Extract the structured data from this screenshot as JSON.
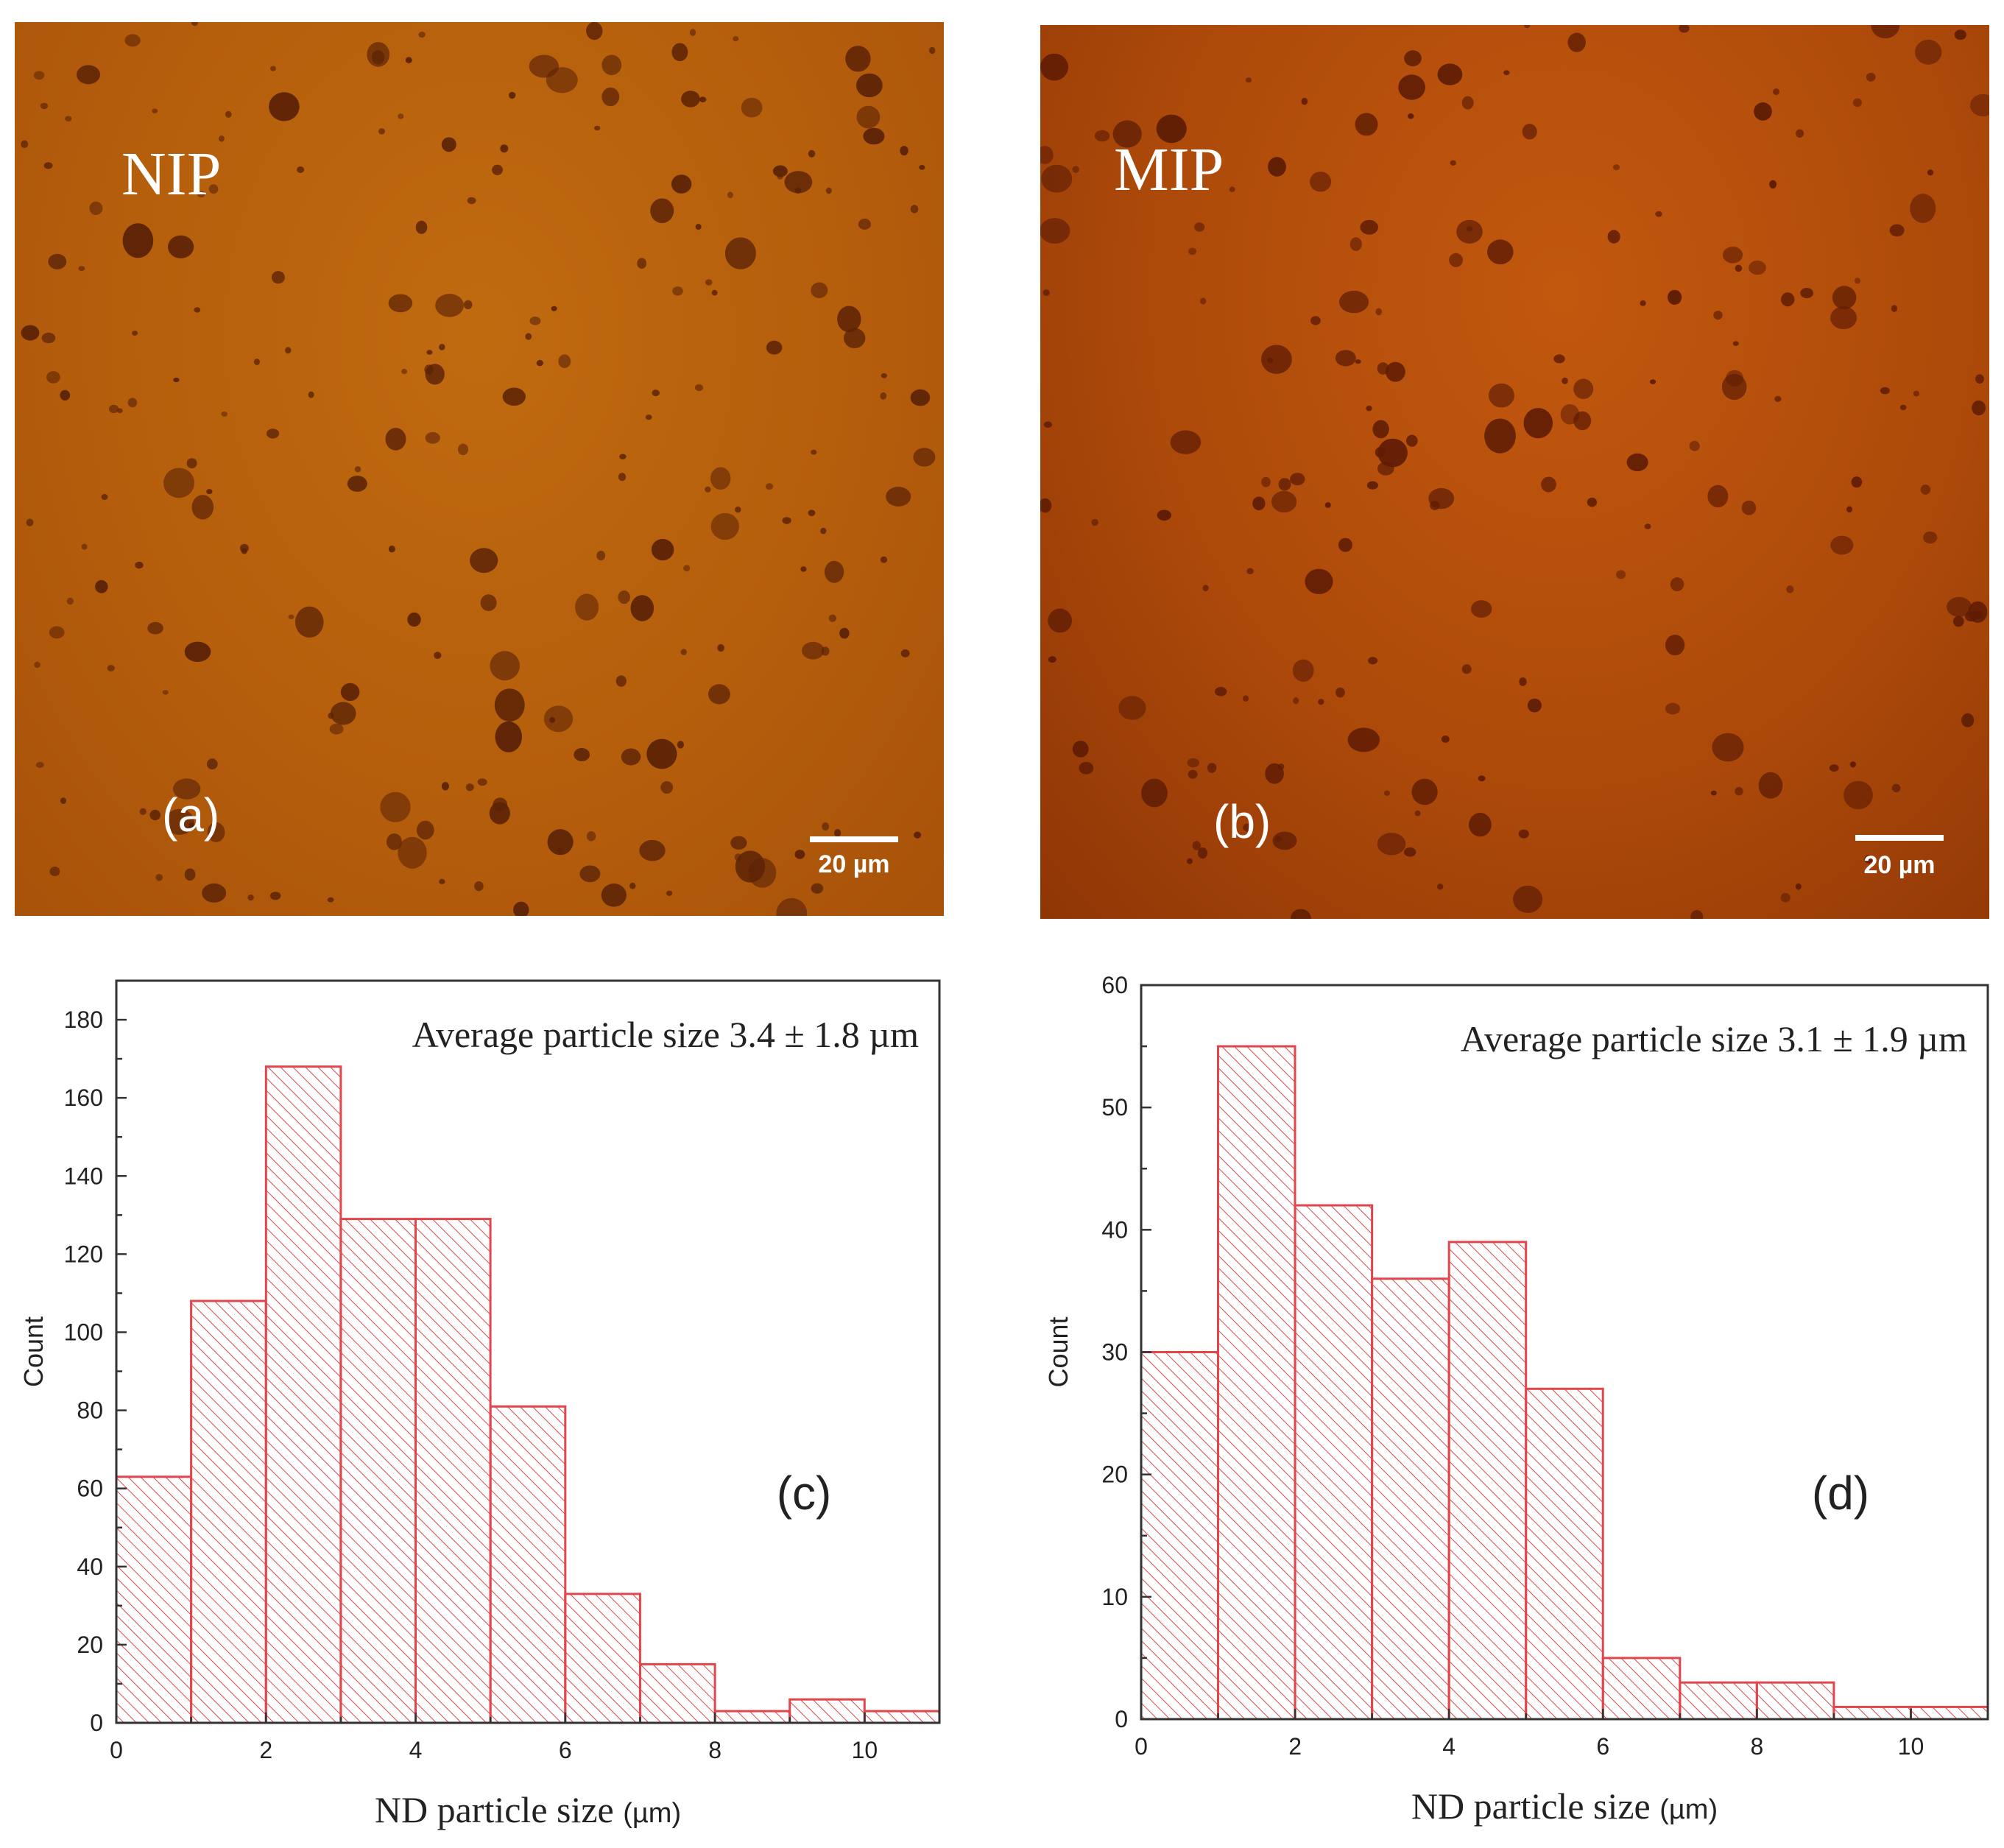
{
  "panels": {
    "a": {
      "sample": "NIP",
      "letter": "(a)",
      "scale_label": "20 µm",
      "color": "#b55e0c"
    },
    "b": {
      "sample": "MIP",
      "letter": "(b)",
      "scale_label": "20 µm",
      "color": "#ad4a0a"
    }
  },
  "bar_color": "#e0464b",
  "chart_data": [
    {
      "type": "bar",
      "panel_letter": "(c)",
      "annotation": "Average particle size 3.4 ± 1.8 µm",
      "xlabel_main": "ND particle size",
      "xlabel_unit": "(µm)",
      "ylabel": "Count",
      "bin_edges": [
        0,
        1,
        2,
        3,
        4,
        5,
        6,
        7,
        8,
        9,
        10,
        11
      ],
      "values": [
        63,
        108,
        168,
        129,
        129,
        81,
        33,
        15,
        3,
        6,
        3
      ],
      "xlim": [
        0,
        11
      ],
      "ylim": [
        0,
        190
      ],
      "xticks": [
        0,
        2,
        4,
        6,
        8,
        10
      ],
      "yticks": [
        0,
        20,
        40,
        60,
        80,
        100,
        120,
        140,
        160,
        180
      ]
    },
    {
      "type": "bar",
      "panel_letter": "(d)",
      "annotation": "Average particle size 3.1 ± 1.9 µm",
      "xlabel_main": "ND particle size",
      "xlabel_unit": "(µm)",
      "ylabel": "Count",
      "bin_edges": [
        0,
        1,
        2,
        3,
        4,
        5,
        6,
        7,
        8,
        9,
        10,
        11
      ],
      "values": [
        30,
        55,
        42,
        36,
        39,
        27,
        5,
        3,
        3,
        1,
        1
      ],
      "xlim": [
        0,
        11
      ],
      "ylim": [
        0,
        60
      ],
      "xticks": [
        0,
        2,
        4,
        6,
        8,
        10
      ],
      "yticks": [
        0,
        10,
        20,
        30,
        40,
        50,
        60
      ]
    }
  ]
}
